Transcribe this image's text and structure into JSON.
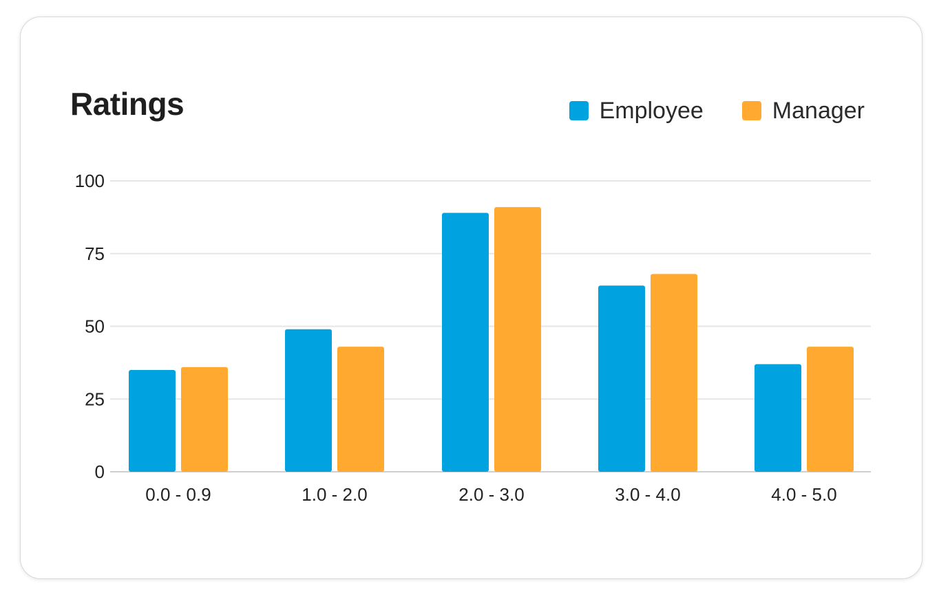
{
  "chart_data": {
    "type": "bar",
    "title": "Ratings",
    "categories": [
      "0.0 - 0.9",
      "1.0 - 2.0",
      "2.0 - 3.0",
      "3.0 - 4.0",
      "4.0 - 5.0"
    ],
    "series": [
      {
        "name": "Employee",
        "values": [
          35,
          49,
          89,
          64,
          37
        ],
        "color": "#00a3e0"
      },
      {
        "name": "Manager",
        "values": [
          36,
          43,
          91,
          68,
          43
        ],
        "color": "#ffa931"
      }
    ],
    "yticks": [
      "0",
      "25",
      "50",
      "75",
      "100"
    ],
    "ylim": [
      0,
      100
    ],
    "grid": true,
    "legend_position": "top-right",
    "xlabel": "",
    "ylabel": ""
  }
}
